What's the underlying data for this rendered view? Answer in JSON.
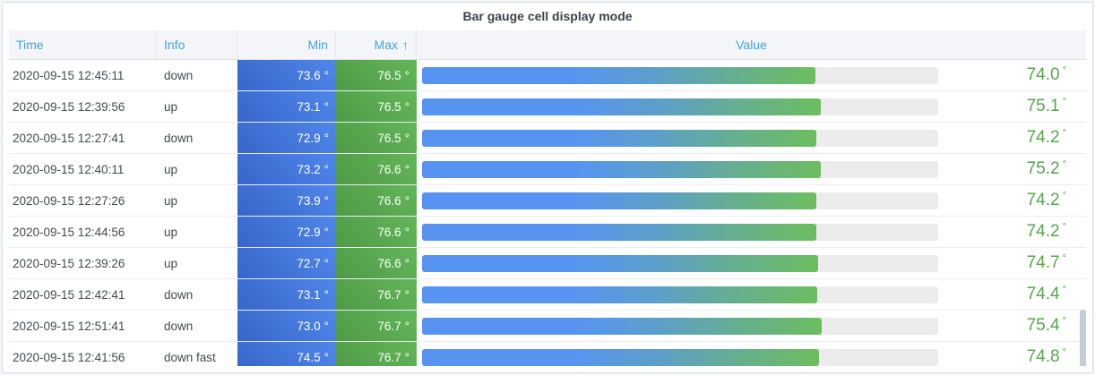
{
  "panel": {
    "title": "Bar gauge cell display mode"
  },
  "table": {
    "unit": "°",
    "columns": {
      "time": "Time",
      "info": "Info",
      "min": "Min",
      "max": "Max",
      "max_sort_arrow": "↑",
      "value": "Value"
    },
    "rows": [
      {
        "time": "2020-09-15 12:45:11",
        "info": "down",
        "min": "73.6",
        "max": "76.5",
        "value": "74.0",
        "bar_percent": 76.2
      },
      {
        "time": "2020-09-15 12:39:56",
        "info": "up",
        "min": "73.1",
        "max": "76.5",
        "value": "75.1",
        "bar_percent": 77.2
      },
      {
        "time": "2020-09-15 12:27:41",
        "info": "down",
        "min": "72.9",
        "max": "76.5",
        "value": "74.2",
        "bar_percent": 76.4
      },
      {
        "time": "2020-09-15 12:40:11",
        "info": "up",
        "min": "73.2",
        "max": "76.6",
        "value": "75.2",
        "bar_percent": 77.3
      },
      {
        "time": "2020-09-15 12:27:26",
        "info": "up",
        "min": "73.9",
        "max": "76.6",
        "value": "74.2",
        "bar_percent": 76.4
      },
      {
        "time": "2020-09-15 12:44:56",
        "info": "up",
        "min": "72.9",
        "max": "76.6",
        "value": "74.2",
        "bar_percent": 76.4
      },
      {
        "time": "2020-09-15 12:39:26",
        "info": "up",
        "min": "72.7",
        "max": "76.6",
        "value": "74.7",
        "bar_percent": 76.8
      },
      {
        "time": "2020-09-15 12:42:41",
        "info": "down",
        "min": "73.1",
        "max": "76.7",
        "value": "74.4",
        "bar_percent": 76.6
      },
      {
        "time": "2020-09-15 12:51:41",
        "info": "down",
        "min": "73.0",
        "max": "76.7",
        "value": "75.4",
        "bar_percent": 77.5
      },
      {
        "time": "2020-09-15 12:41:56",
        "info": "down fast",
        "min": "74.5",
        "max": "76.7",
        "value": "74.8",
        "bar_percent": 76.9
      }
    ]
  },
  "colors": {
    "header_text_blue": "#41A3E6",
    "min_cell_blue_start": "#3766C8",
    "min_cell_blue_end": "#5086EA",
    "max_cell_green_start": "#4F9A47",
    "max_cell_green_end": "#63B659",
    "bar_blue": "#5794F2",
    "bar_green": "#6CBD5F",
    "bar_track_gray": "#ECECEC",
    "value_text_green": "#56A64B",
    "header_bg": "#F4F5F9",
    "row_border": "#E9EDF2"
  }
}
